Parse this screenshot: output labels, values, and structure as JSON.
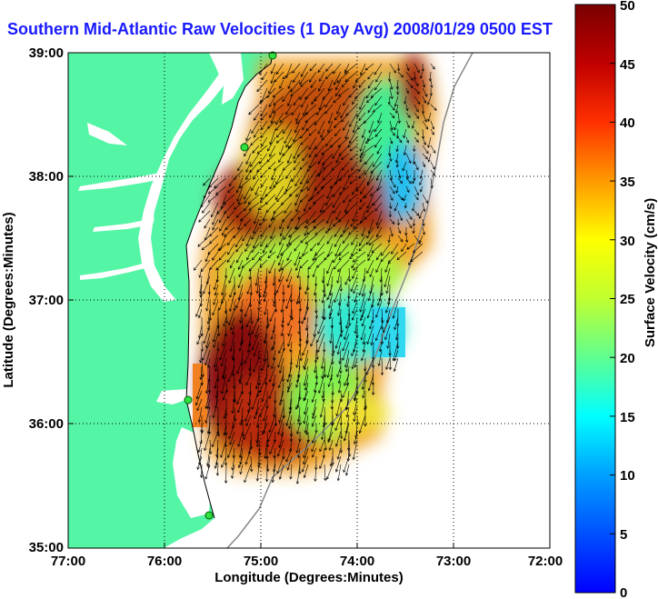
{
  "title": "Southern Mid-Atlantic Raw Velocities (1 Day Avg) 2008/01/29 0500 EST",
  "map": {
    "xlabel": "Longitude (Degrees:Minutes)",
    "ylabel": "Latitude (Degrees:Minutes)",
    "lon_ticks": [
      "77:00",
      "76:00",
      "75:00",
      "74:00",
      "73:00",
      "72:00"
    ],
    "lat_ticks": [
      "39:00",
      "38:00",
      "37:00",
      "36:00",
      "35:00"
    ],
    "lon_range": [
      -77,
      -72
    ],
    "lat_range": [
      35,
      39
    ],
    "land_color": "#55f5a6",
    "water_color": "#ffffff",
    "grid": "dotted"
  },
  "colorbar": {
    "label": "Surface Velocity (cm/s)",
    "ticks": [
      "50",
      "45",
      "40",
      "35",
      "30",
      "25",
      "20",
      "15",
      "10",
      "5",
      "0"
    ],
    "range": [
      0,
      50
    ],
    "colormap": "jet"
  },
  "stations": [
    {
      "lat": 38.95,
      "lon": -74.85
    },
    {
      "lat": 38.22,
      "lon": -75.17
    },
    {
      "lat": 36.19,
      "lon": -75.74
    },
    {
      "lat": 35.25,
      "lon": -75.52
    }
  ]
}
